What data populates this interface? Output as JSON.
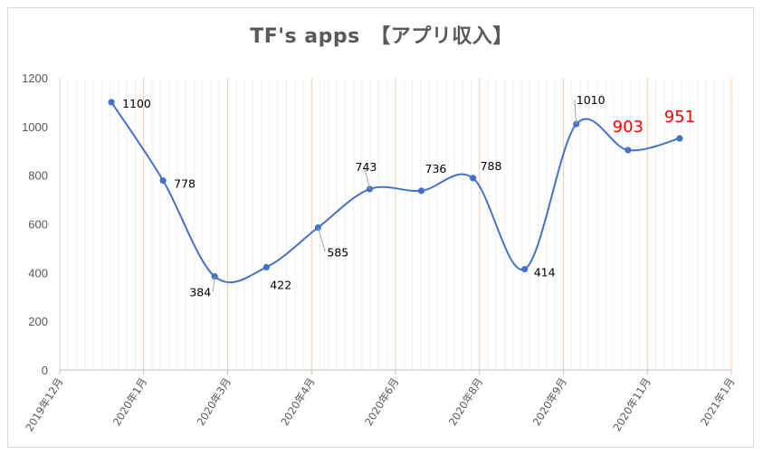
{
  "chart_data": {
    "type": "line",
    "title": "TF's apps　【アプリ収入】",
    "smooth": true,
    "grid": "vertical",
    "ylim": [
      0,
      1200
    ],
    "yticks": [
      0,
      200,
      400,
      600,
      800,
      1000,
      1200
    ],
    "x_tick_labels": [
      "2019年12月",
      "2020年1月",
      "2020年3月",
      "2020年4月",
      "2020年6月",
      "2020年8月",
      "2020年9月",
      "2020年11月",
      "2021年1月"
    ],
    "series": [
      {
        "color": "#4472c4",
        "values": [
          1100,
          778,
          384,
          422,
          585,
          743,
          736,
          788,
          414,
          1010,
          903,
          951
        ],
        "label_colors": [
          "#000000",
          "#000000",
          "#000000",
          "#000000",
          "#000000",
          "#000000",
          "#000000",
          "#000000",
          "#000000",
          "#000000",
          "#ff0000",
          "#ff0000"
        ]
      }
    ]
  }
}
